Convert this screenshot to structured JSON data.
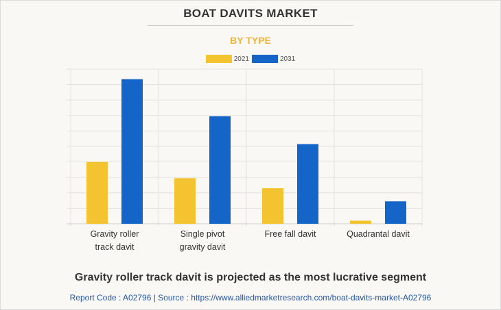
{
  "title": "BOAT DAVITS MARKET",
  "subtitle": "BY TYPE",
  "colors": {
    "subtitle": "#f2b33d",
    "series_2021": "#f4c430",
    "series_2031": "#1565c8",
    "grid": "#e2e2e2",
    "axis": "#cccccc"
  },
  "chart_data": {
    "type": "bar",
    "title": "BOAT DAVITS MARKET",
    "subtitle": "BY TYPE",
    "categories": [
      [
        "Gravity roller",
        "track davit"
      ],
      [
        "Single pivot",
        "gravity davit"
      ],
      [
        "Free fall davit"
      ],
      [
        "Quadrantal davit"
      ]
    ],
    "series": [
      {
        "name": "2021",
        "values": [
          40,
          29.5,
          23,
          2
        ]
      },
      {
        "name": "2031",
        "values": [
          93.5,
          69.5,
          51.5,
          14.5
        ]
      }
    ],
    "ylim": [
      0,
      100
    ],
    "grid": true,
    "legend": "top-center",
    "xlabel": "",
    "ylabel": ""
  },
  "headline": "Gravity roller track davit is projected as the most lucrative segment",
  "footer": "Report Code : A02796  |  Source : https://www.alliedmarketresearch.com/boat-davits-market-A02796"
}
